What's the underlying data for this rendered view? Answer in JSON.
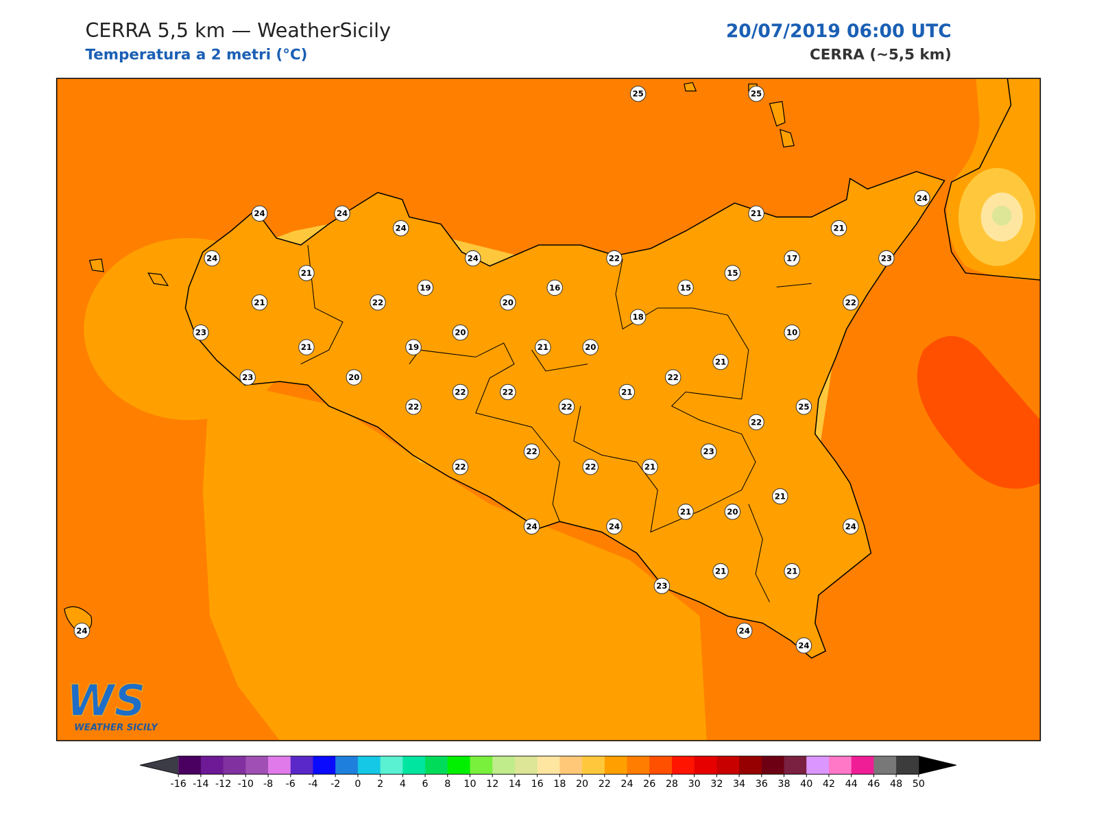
{
  "header": {
    "title": "CERRA 5,5 km — WeatherSicily",
    "subtitle": "Temperatura a 2 metri (°C)",
    "date": "20/07/2019 06:00 UTC",
    "model": "CERRA (~5,5 km)"
  },
  "stations": [
    25,
    25,
    24,
    24,
    24,
    21,
    24,
    21,
    24,
    21,
    24,
    22,
    17,
    23,
    15,
    15,
    19,
    16,
    21,
    22,
    20,
    22,
    18,
    10,
    23,
    20,
    21,
    19,
    21,
    20,
    21,
    23,
    20,
    22,
    22,
    22,
    21,
    22,
    22,
    25,
    22,
    23,
    22,
    22,
    22,
    21,
    21,
    21,
    20,
    24,
    24,
    24,
    23,
    21,
    21,
    24,
    24,
    24
  ],
  "colorbar": {
    "ticks": [
      -16,
      -14,
      -12,
      -10,
      -8,
      -6,
      -4,
      -2,
      0,
      2,
      4,
      6,
      8,
      10,
      12,
      14,
      16,
      18,
      20,
      22,
      24,
      26,
      28,
      30,
      32,
      34,
      36,
      38,
      40,
      42,
      44,
      46,
      48,
      50
    ],
    "colors": [
      "#4a0060",
      "#6e1a96",
      "#8232a0",
      "#a050b4",
      "#e07aeb",
      "#5a28c8",
      "#0a0aff",
      "#1e80dc",
      "#14c8e6",
      "#5af0d2",
      "#00e6a0",
      "#00dc5a",
      "#00f000",
      "#78f03c",
      "#c0ec8c",
      "#dce696",
      "#ffe6a0",
      "#ffc878",
      "#ffc83c",
      "#ffa000",
      "#ff7d00",
      "#ff5000",
      "#ff1400",
      "#e60000",
      "#c80000",
      "#960000",
      "#6e0014",
      "#7a2040",
      "#dc96ff",
      "#ff78c8",
      "#f01e96",
      "#787878",
      "#3c3c3c"
    ],
    "under_color": "#3c3c46",
    "over_color": "#000000"
  },
  "logo": {
    "text": "WS",
    "subtext": "WEATHER SICILY"
  }
}
